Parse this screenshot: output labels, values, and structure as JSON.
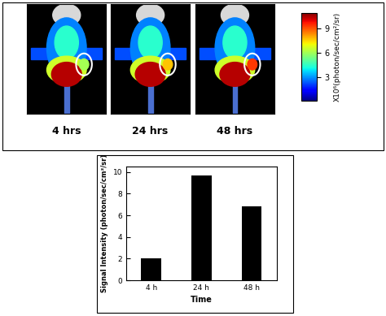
{
  "panels": {
    "labels": [
      "4 hrs",
      "24 hrs",
      "48 hrs"
    ],
    "colorbar": {
      "label": "X10⁶(photon/sec/cm²/sr)",
      "range": [
        0,
        11
      ],
      "ticks": [
        3,
        6,
        9
      ]
    }
  },
  "chart_data": {
    "type": "bar",
    "categories": [
      "4 h",
      "24 h",
      "48 h"
    ],
    "values": [
      2.05,
      9.65,
      6.85
    ],
    "x_label": "Time",
    "y_label": "Signal Intensity (photon/sec/cm²/sr)",
    "ylim": [
      0,
      10.5
    ],
    "yticks": [
      0,
      2,
      4,
      6,
      8,
      10
    ],
    "color": "#000000"
  }
}
